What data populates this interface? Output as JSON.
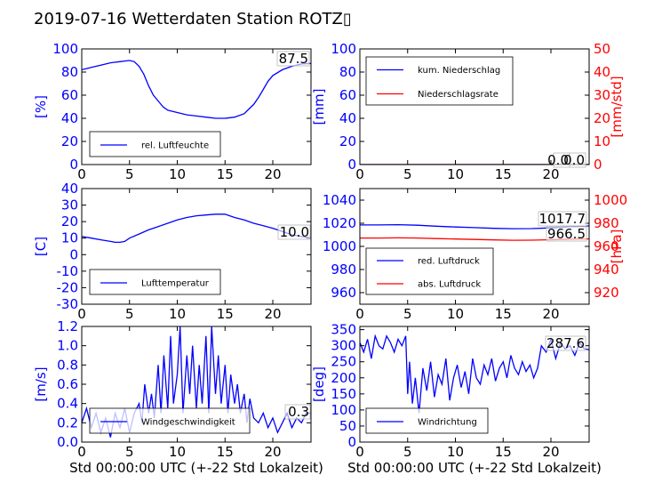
{
  "title": "2019-07-16 Wetterdaten Station ROTZ▯",
  "colors": {
    "left": "#0000ff",
    "right": "#ff0000"
  },
  "chart_data": [
    {
      "id": "humidity",
      "type": "line",
      "xlim": [
        0,
        24
      ],
      "xticks": [
        0,
        5,
        10,
        15,
        20
      ],
      "xlabel": "",
      "left": {
        "label": "[%]",
        "ylim": [
          0,
          100
        ],
        "ticks": [
          0,
          20,
          40,
          60,
          80,
          100
        ]
      },
      "series": [
        {
          "name": "rel. Luftfeuchte",
          "axis": "left",
          "color": "#0000ff",
          "x": [
            0,
            0.5,
            1,
            2,
            3,
            4,
            4.5,
            5,
            5.5,
            6,
            6.5,
            7,
            7.5,
            8,
            8.5,
            9,
            10,
            11,
            12,
            13,
            14,
            15,
            16,
            17,
            17.5,
            18,
            18.5,
            19,
            19.5,
            20,
            21,
            22,
            23,
            24
          ],
          "y": [
            82,
            83,
            84,
            86,
            88,
            89,
            89.5,
            90,
            89,
            85,
            78,
            68,
            60,
            55,
            50,
            47,
            45,
            43,
            42,
            41,
            40,
            40,
            41,
            44,
            48,
            52,
            58,
            65,
            72,
            77,
            82,
            85,
            87,
            87.5
          ]
        }
      ],
      "legend": {
        "position": "lower-left"
      },
      "annotations": [
        "87.5"
      ]
    },
    {
      "id": "precip",
      "type": "line",
      "xlim": [
        0,
        24
      ],
      "xticks": [
        0,
        5,
        10,
        15,
        20
      ],
      "xlabel": "",
      "left": {
        "label": "[mm]",
        "ylim": [
          0,
          100
        ],
        "ticks": [
          0,
          20,
          40,
          60,
          80,
          100
        ]
      },
      "right": {
        "label": "[mm/std]",
        "ylim": [
          0,
          50
        ],
        "ticks": [
          0,
          10,
          20,
          30,
          40,
          50
        ]
      },
      "series": [
        {
          "name": "kum. Niederschlag",
          "axis": "left",
          "color": "#0000ff",
          "x": [
            0,
            24
          ],
          "y": [
            0,
            0
          ]
        },
        {
          "name": "Niederschlagsrate",
          "axis": "right",
          "color": "#ff0000",
          "x": [
            0,
            24
          ],
          "y": [
            0,
            0
          ]
        }
      ],
      "legend": {
        "position": "upper-left"
      },
      "annotations": [
        "0.0",
        "0.0"
      ]
    },
    {
      "id": "temperature",
      "type": "line",
      "xlim": [
        0,
        24
      ],
      "xticks": [
        0,
        5,
        10,
        15,
        20
      ],
      "xlabel": "",
      "left": {
        "label": "[C]",
        "ylim": [
          -30,
          40
        ],
        "ticks": [
          -30,
          -20,
          -10,
          0,
          10,
          20,
          30,
          40
        ]
      },
      "series": [
        {
          "name": "Lufttemperatur",
          "axis": "left",
          "color": "#0000ff",
          "x": [
            0,
            1,
            2,
            3,
            3.5,
            4,
            4.5,
            5,
            6,
            7,
            8,
            9,
            10,
            11,
            12,
            13,
            14,
            15,
            16,
            17,
            18,
            19,
            20,
            21,
            22,
            23,
            24
          ],
          "y": [
            11,
            10,
            9,
            8,
            7.5,
            7.5,
            8,
            10,
            12.5,
            15,
            17,
            19,
            21,
            22.5,
            23.5,
            24,
            24.5,
            24.5,
            22.5,
            21,
            19,
            17.5,
            16,
            14,
            12,
            11,
            10
          ]
        }
      ],
      "legend": {
        "position": "lower-left"
      },
      "annotations": [
        "10.0"
      ]
    },
    {
      "id": "pressure",
      "type": "line",
      "xlim": [
        0,
        24
      ],
      "xticks": [
        0,
        5,
        10,
        15,
        20
      ],
      "xlabel": "",
      "left": {
        "label": "",
        "ylim": [
          950,
          1050
        ],
        "ticks": [
          960,
          980,
          1000,
          1020,
          1040
        ]
      },
      "right": {
        "label": "[hPa]",
        "ylim": [
          910,
          1010
        ],
        "ticks": [
          920,
          940,
          960,
          980,
          1000
        ]
      },
      "series": [
        {
          "name": "red. Luftdruck",
          "axis": "left",
          "color": "#0000ff",
          "x": [
            0,
            2,
            4,
            6,
            8,
            10,
            12,
            14,
            16,
            18,
            20,
            22,
            24
          ],
          "y": [
            1018.5,
            1018.5,
            1018.8,
            1018.3,
            1017.5,
            1016.8,
            1016.2,
            1015.6,
            1015.3,
            1015.4,
            1016,
            1017,
            1017.7
          ]
        },
        {
          "name": "abs. Luftdruck",
          "axis": "right",
          "color": "#ff0000",
          "x": [
            0,
            2,
            4,
            6,
            8,
            10,
            12,
            14,
            16,
            18,
            20,
            22,
            24
          ],
          "y": [
            967.2,
            967.2,
            967.4,
            967.2,
            966.8,
            966.4,
            966,
            965.6,
            965.3,
            965.4,
            965.8,
            966.2,
            966.5
          ]
        }
      ],
      "legend": {
        "position": "lower-left"
      },
      "annotations": [
        "1017.7",
        "966.5"
      ]
    },
    {
      "id": "wind-speed",
      "type": "line",
      "xlim": [
        0,
        24
      ],
      "xticks": [
        0,
        5,
        10,
        15,
        20
      ],
      "xlabel": "Std 00:00:00 UTC (+-22 Std Lokalzeit)",
      "left": {
        "label": "[m/s]",
        "ylim": [
          0,
          1.2
        ],
        "ticks": [
          0.0,
          0.2,
          0.4,
          0.6,
          0.8,
          1.0,
          1.2
        ]
      },
      "series": [
        {
          "name": "Windgeschwindigkeit",
          "axis": "left",
          "color": "#0000ff",
          "x": [
            0,
            0.5,
            1,
            1.5,
            2,
            2.5,
            3,
            3.5,
            4,
            4.5,
            5,
            5.5,
            6,
            6.3,
            6.6,
            7,
            7.3,
            7.6,
            8,
            8.3,
            8.6,
            9,
            9.3,
            9.6,
            10,
            10.3,
            10.6,
            11,
            11.3,
            11.6,
            12,
            12.3,
            12.6,
            13,
            13.3,
            13.6,
            14,
            14.3,
            14.6,
            15,
            15.3,
            15.6,
            16,
            16.3,
            16.6,
            17,
            17.3,
            17.6,
            18,
            18.5,
            19,
            19.5,
            20,
            20.5,
            21,
            21.5,
            22,
            22.5,
            23,
            23.5,
            24
          ],
          "y": [
            0.2,
            0.35,
            0.15,
            0.3,
            0.1,
            0.25,
            0.05,
            0.3,
            0.15,
            0.35,
            0.1,
            0.3,
            0.4,
            0.2,
            0.6,
            0.3,
            0.5,
            0.25,
            0.8,
            0.3,
            0.9,
            0.35,
            1.1,
            0.4,
            0.7,
            1.2,
            0.3,
            0.9,
            0.5,
            1.0,
            0.35,
            0.8,
            0.4,
            1.1,
            0.3,
            1.2,
            0.5,
            0.9,
            0.4,
            0.8,
            0.3,
            0.7,
            0.4,
            0.6,
            0.3,
            0.5,
            0.2,
            0.45,
            0.25,
            0.2,
            0.3,
            0.15,
            0.25,
            0.1,
            0.2,
            0.3,
            0.15,
            0.25,
            0.2,
            0.3,
            0.3
          ]
        }
      ],
      "legend": {
        "position": "lower-center"
      },
      "annotations": [
        "0.3"
      ]
    },
    {
      "id": "wind-direction",
      "type": "line",
      "xlim": [
        0,
        24
      ],
      "xticks": [
        0,
        5,
        10,
        15,
        20
      ],
      "xlabel": "Std 00:00:00 UTC (+-22 Std Lokalzeit)",
      "left": {
        "label": "[deg]",
        "ylim": [
          0,
          360
        ],
        "ticks": [
          0,
          50,
          100,
          150,
          200,
          250,
          300,
          350
        ]
      },
      "series": [
        {
          "name": "Windrichtung",
          "axis": "left",
          "color": "#0000ff",
          "x": [
            0,
            0.4,
            0.8,
            1.2,
            1.6,
            2,
            2.4,
            2.8,
            3.2,
            3.6,
            4,
            4.4,
            4.8,
            5,
            5.2,
            5.5,
            5.8,
            6.2,
            6.6,
            7,
            7.4,
            7.8,
            8.2,
            8.6,
            9,
            9.4,
            9.8,
            10.2,
            10.6,
            11,
            11.4,
            11.8,
            12.2,
            12.6,
            13,
            13.4,
            13.8,
            14.2,
            14.6,
            15,
            15.4,
            15.8,
            16.2,
            16.6,
            17,
            17.4,
            17.8,
            18.2,
            18.6,
            19,
            19.5,
            20,
            20.5,
            21,
            21.5,
            22,
            22.5,
            23,
            23.5,
            24
          ],
          "y": [
            310,
            280,
            320,
            260,
            330,
            300,
            290,
            330,
            310,
            280,
            320,
            300,
            330,
            150,
            250,
            120,
            200,
            90,
            230,
            160,
            250,
            140,
            210,
            180,
            260,
            130,
            200,
            240,
            170,
            220,
            150,
            260,
            200,
            180,
            240,
            210,
            260,
            190,
            230,
            250,
            200,
            270,
            230,
            210,
            250,
            220,
            240,
            200,
            230,
            300,
            280,
            320,
            260,
            310,
            290,
            300,
            270,
            310,
            290,
            287.6
          ]
        }
      ],
      "legend": {
        "position": "lower-left"
      },
      "annotations": [
        "287.6"
      ]
    }
  ]
}
